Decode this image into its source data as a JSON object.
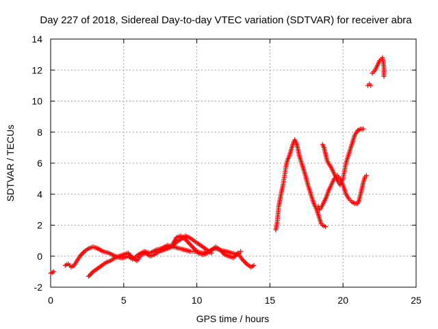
{
  "chart_data": {
    "type": "scatter",
    "title": "Day 227 of 2018, Sidereal Day-to-day VTEC variation (SDTVAR) for receiver abra",
    "xlabel": "GPS time / hours",
    "ylabel": "SDTVAR / TECUs",
    "xlim": [
      0,
      25
    ],
    "ylim": [
      -2,
      14
    ],
    "xticks": [
      0,
      5,
      10,
      15,
      20,
      25
    ],
    "yticks": [
      -2,
      0,
      2,
      4,
      6,
      8,
      10,
      12,
      14
    ],
    "grid": true,
    "marker": "+",
    "color": "#ff0000",
    "segments": [
      {
        "x": [
          0.0,
          0.2
        ],
        "y": [
          -1.1,
          -1.0
        ]
      },
      {
        "x": [
          1.0,
          1.2,
          1.4,
          1.6,
          1.8,
          2.0,
          2.3,
          2.6,
          2.9,
          3.2,
          3.6,
          4.0,
          4.4,
          4.8,
          5.0,
          5.3,
          5.6,
          6.0,
          6.4,
          6.8,
          7.2,
          7.6,
          8.0,
          8.4,
          8.8,
          9.2,
          9.6,
          10.0,
          10.4,
          10.8,
          11.2,
          11.6,
          12.0,
          12.4,
          12.8,
          13.0
        ],
        "y": [
          -0.6,
          -0.5,
          -0.7,
          -0.6,
          -0.3,
          0.0,
          0.3,
          0.5,
          0.6,
          0.5,
          0.3,
          0.2,
          0.0,
          -0.1,
          -0.1,
          0.0,
          -0.2,
          0.1,
          0.3,
          0.2,
          0.4,
          0.5,
          0.7,
          0.6,
          0.5,
          0.4,
          0.3,
          0.3,
          0.2,
          0.3,
          0.5,
          0.4,
          0.3,
          0.2,
          0.1,
          0.3
        ]
      },
      {
        "x": [
          2.6,
          2.9,
          3.2,
          3.5,
          3.8,
          4.1,
          4.4,
          4.7,
          5.0,
          5.3,
          5.6,
          5.9,
          6.2,
          6.5,
          6.8,
          7.1,
          7.4,
          7.7,
          8.0,
          8.3,
          8.6,
          8.9,
          9.2,
          9.5,
          9.8,
          10.1,
          10.4,
          10.7,
          11.0,
          11.3,
          11.6,
          11.9,
          12.2,
          12.5,
          12.8,
          13.1,
          13.4,
          13.7,
          13.9
        ],
        "y": [
          -1.3,
          -1.0,
          -0.8,
          -0.6,
          -0.4,
          -0.3,
          -0.1,
          0.0,
          0.1,
          0.2,
          -0.1,
          -0.3,
          0.1,
          0.2,
          0.0,
          0.1,
          0.3,
          0.4,
          0.5,
          0.7,
          1.2,
          1.3,
          1.1,
          0.8,
          0.5,
          0.2,
          0.1,
          0.2,
          0.4,
          0.6,
          0.4,
          0.1,
          0.0,
          -0.1,
          0.2,
          -0.2,
          -0.5,
          -0.7,
          -0.6
        ]
      },
      {
        "x": [
          8.0,
          8.3,
          8.6,
          8.9,
          9.2,
          9.5,
          9.8,
          10.1,
          10.4,
          10.7,
          11.0
        ],
        "y": [
          0.5,
          0.6,
          0.9,
          1.1,
          1.3,
          1.2,
          1.0,
          0.8,
          0.6,
          0.4,
          0.2
        ]
      },
      {
        "x": [
          15.4,
          15.5,
          15.6,
          15.7,
          15.8,
          15.9,
          16.0,
          16.1,
          16.2,
          16.3,
          16.4,
          16.5,
          16.6,
          16.7,
          16.8,
          16.9,
          17.0,
          17.2,
          17.4,
          17.6,
          17.8,
          18.0,
          18.2,
          18.4,
          18.5,
          18.6,
          18.8
        ],
        "y": [
          1.7,
          2.2,
          3.2,
          3.7,
          4.2,
          4.6,
          5.2,
          5.8,
          6.2,
          6.4,
          6.7,
          7.0,
          7.3,
          7.5,
          7.3,
          7.0,
          6.5,
          5.9,
          5.3,
          4.6,
          4.0,
          3.4,
          3.0,
          2.4,
          2.1,
          2.0,
          1.9
        ]
      },
      {
        "x": [
          18.3,
          18.4,
          18.5,
          18.6,
          18.7,
          18.8,
          18.9,
          19.0,
          19.2,
          19.4,
          19.6,
          19.8,
          20.0,
          20.2,
          20.4,
          20.6,
          20.8,
          21.0,
          21.1,
          21.2,
          21.3,
          21.4,
          21.5,
          21.6
        ],
        "y": [
          3.2,
          3.0,
          3.1,
          3.3,
          3.5,
          3.7,
          3.9,
          4.2,
          4.6,
          5.0,
          5.2,
          5.0,
          4.6,
          4.0,
          3.7,
          3.5,
          3.4,
          3.4,
          3.6,
          4.0,
          4.4,
          4.8,
          5.1,
          5.2
        ]
      },
      {
        "x": [
          18.6,
          18.7,
          18.8,
          18.9,
          19.0,
          19.2,
          19.4,
          19.6,
          19.8,
          20.0,
          20.2,
          20.4,
          20.6,
          20.8,
          21.0,
          21.2,
          21.4
        ],
        "y": [
          7.2,
          7.0,
          6.6,
          6.2,
          6.0,
          5.7,
          5.3,
          4.9,
          4.6,
          5.0,
          6.0,
          6.6,
          7.2,
          7.8,
          8.1,
          8.2,
          8.2
        ]
      },
      {
        "x": [
          21.7,
          21.8,
          21.9
        ],
        "y": [
          11.0,
          11.1,
          11.0
        ]
      },
      {
        "x": [
          22.0,
          22.1,
          22.2,
          22.3,
          22.4,
          22.5,
          22.6,
          22.7,
          22.75,
          22.8,
          22.8,
          22.8
        ],
        "y": [
          11.8,
          11.9,
          12.0,
          12.2,
          12.4,
          12.6,
          12.7,
          12.8,
          12.5,
          12.2,
          11.9,
          11.6
        ]
      }
    ]
  }
}
